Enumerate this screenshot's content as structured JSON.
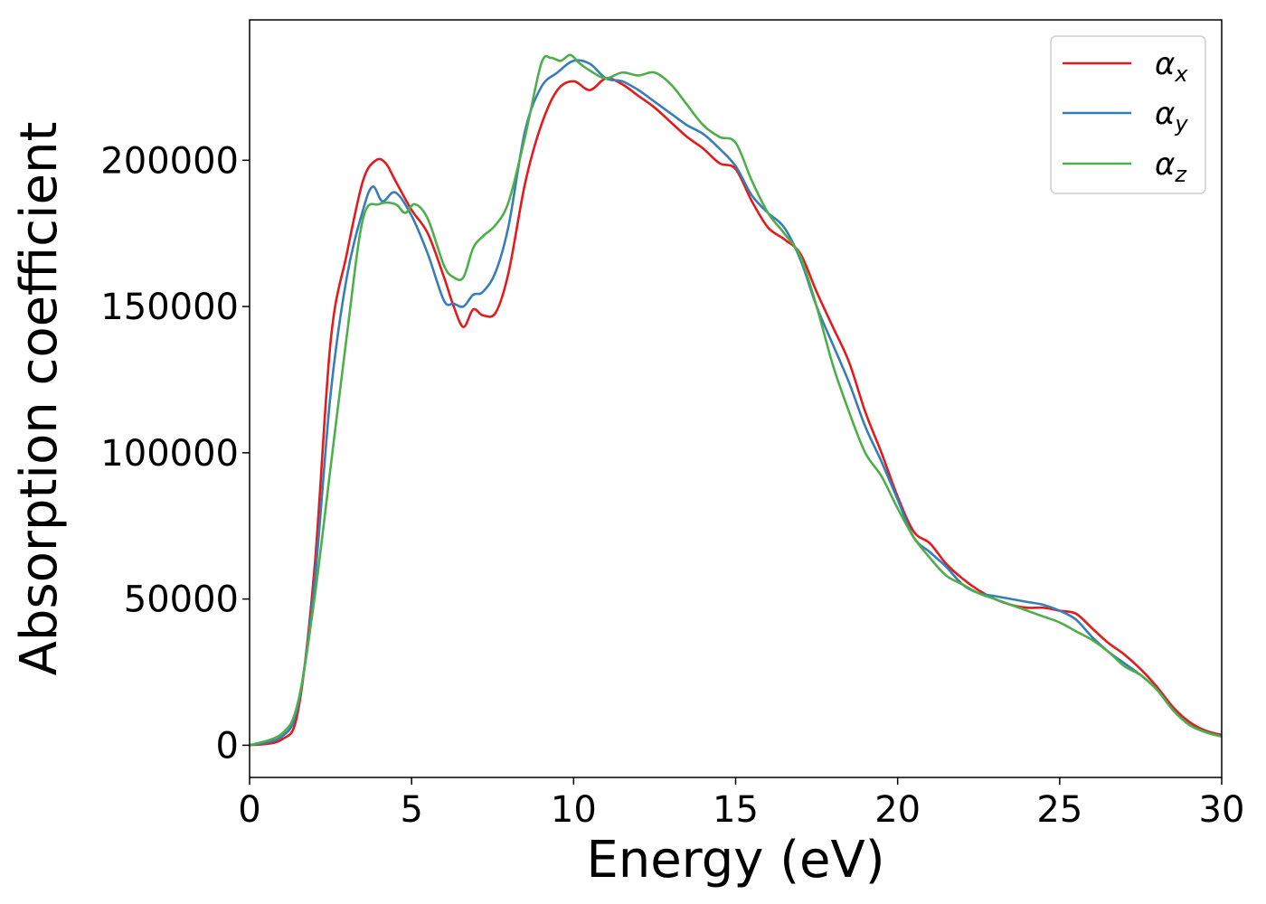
{
  "chart_data": {
    "type": "line",
    "xlabel": "Energy (eV)",
    "ylabel": "Absorption coefficient",
    "xlim": [
      0,
      30
    ],
    "ylim": [
      -11000,
      248000
    ],
    "xticks": [
      0,
      5,
      10,
      15,
      20,
      25,
      30
    ],
    "yticks": [
      0,
      50000,
      100000,
      150000,
      200000
    ],
    "grid": false,
    "legend_position": "top-right",
    "series": [
      {
        "name": "α",
        "subscript": "x",
        "color": "#e41a1c",
        "x": [
          0,
          1,
          1.5,
          2,
          2.5,
          3,
          3.5,
          3.9,
          4.2,
          4.5,
          5,
          5.5,
          6,
          6.3,
          6.6,
          6.9,
          7.2,
          7.6,
          8,
          8.5,
          9,
          9.5,
          10,
          10.5,
          11,
          11.5,
          12,
          12.5,
          13,
          13.5,
          14,
          14.5,
          15,
          15.5,
          16,
          16.5,
          17,
          17.5,
          18,
          18.5,
          19,
          19.5,
          20,
          20.5,
          21,
          21.5,
          22,
          22.5,
          23,
          23.5,
          24,
          24.5,
          25,
          25.5,
          26,
          26.5,
          27,
          27.5,
          28,
          28.5,
          29,
          29.5,
          30
        ],
        "y": [
          0,
          2000,
          12000,
          60000,
          138000,
          168000,
          193000,
          200000,
          199000,
          193000,
          183000,
          175000,
          160000,
          150000,
          143000,
          149000,
          147000,
          148000,
          162000,
          192000,
          212000,
          224000,
          227000,
          224000,
          228000,
          226000,
          222000,
          218000,
          213000,
          208000,
          204000,
          199000,
          197000,
          186000,
          177000,
          173000,
          168000,
          155000,
          143000,
          131000,
          114000,
          100000,
          85000,
          73000,
          69000,
          62000,
          57000,
          53000,
          50000,
          48000,
          47000,
          47000,
          46000,
          45000,
          40000,
          35000,
          31000,
          26000,
          20000,
          13000,
          8000,
          5000,
          3500
        ]
      },
      {
        "name": "α",
        "subscript": "y",
        "color": "#377eb8",
        "x": [
          0,
          1,
          1.5,
          2,
          2.5,
          3,
          3.5,
          3.8,
          4.1,
          4.5,
          5,
          5.5,
          6,
          6.3,
          6.6,
          6.9,
          7.2,
          7.6,
          8,
          8.5,
          9,
          9.5,
          10,
          10.5,
          11,
          11.5,
          12,
          12.5,
          13,
          13.5,
          14,
          14.5,
          15,
          15.5,
          16,
          16.5,
          17,
          17.5,
          18,
          18.5,
          19,
          19.5,
          20,
          20.5,
          21,
          21.5,
          22,
          22.5,
          23,
          23.5,
          24,
          24.5,
          25,
          25.5,
          26,
          26.5,
          27,
          27.5,
          28,
          28.5,
          29,
          29.5,
          30
        ],
        "y": [
          0,
          3000,
          14000,
          55000,
          120000,
          160000,
          183000,
          191000,
          186000,
          189000,
          181000,
          168000,
          152000,
          151000,
          150000,
          154000,
          155000,
          162000,
          178000,
          210000,
          225000,
          230000,
          234000,
          233000,
          228000,
          227000,
          224000,
          220000,
          216000,
          212000,
          209000,
          204000,
          198000,
          188000,
          182000,
          177000,
          166000,
          150000,
          137000,
          124000,
          109000,
          97000,
          84000,
          71000,
          66000,
          61000,
          55000,
          52000,
          51000,
          50000,
          49000,
          48000,
          46000,
          43000,
          37000,
          32000,
          28000,
          24000,
          19000,
          12000,
          7000,
          4500,
          3000
        ]
      },
      {
        "name": "α",
        "subscript": "z",
        "color": "#4daf4a",
        "x": [
          0,
          1,
          1.5,
          2,
          2.5,
          3,
          3.5,
          4,
          4.5,
          4.8,
          5.1,
          5.5,
          6,
          6.3,
          6.6,
          6.9,
          7.2,
          7.6,
          8,
          8.5,
          9,
          9.3,
          9.6,
          9.9,
          10.2,
          10.6,
          11,
          11.5,
          12,
          12.5,
          13,
          13.5,
          14,
          14.5,
          15,
          15.5,
          16,
          16.5,
          17,
          17.5,
          18,
          18.5,
          19,
          19.5,
          20,
          20.5,
          21,
          21.5,
          22,
          22.5,
          23,
          23.5,
          24,
          24.5,
          25,
          25.5,
          26,
          26.5,
          27,
          27.5,
          28,
          28.5,
          29,
          29.5,
          30
        ],
        "y": [
          0,
          4000,
          15000,
          50000,
          95000,
          140000,
          180000,
          185000,
          185000,
          182000,
          185000,
          180000,
          164000,
          160000,
          160000,
          170000,
          174000,
          178000,
          186000,
          208000,
          233000,
          235000,
          234000,
          236000,
          233000,
          230000,
          228000,
          230000,
          229000,
          230000,
          226000,
          219000,
          212000,
          208000,
          206000,
          193000,
          182000,
          175000,
          167000,
          150000,
          130000,
          114000,
          100000,
          92000,
          81000,
          71000,
          64000,
          58000,
          55000,
          52000,
          50000,
          48000,
          46000,
          44000,
          42000,
          39000,
          36000,
          32000,
          27000,
          24000,
          19000,
          12000,
          7000,
          4500,
          3000
        ]
      }
    ]
  }
}
